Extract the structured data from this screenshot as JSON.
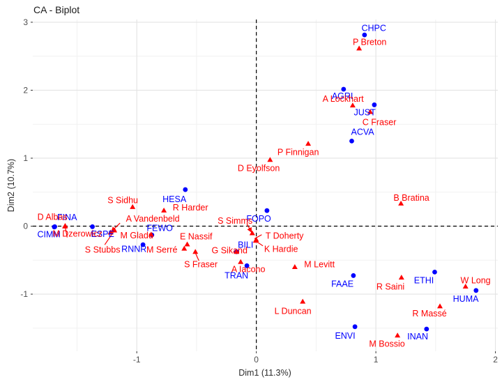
{
  "title": "CA - Biplot",
  "chart_data": {
    "type": "scatter",
    "title": "CA - Biplot",
    "xlabel": "Dim1 (11.3%)",
    "ylabel": "Dim2 (10.7%)",
    "xlim": [
      -1.87,
      2.02
    ],
    "ylim": [
      -1.84,
      3.04
    ],
    "grid": true,
    "legend": "none",
    "reference_lines": {
      "x": 0,
      "y": 0,
      "style": "dashed",
      "color": "#000000"
    },
    "x_ticks": {
      "values": [
        -1,
        0,
        1,
        2
      ],
      "labels": [
        "-1",
        "0",
        "1",
        "2"
      ]
    },
    "y_ticks": {
      "values": [
        -1,
        0,
        1,
        2,
        3
      ],
      "labels": [
        "-1",
        "0",
        "1",
        "2",
        "3"
      ]
    },
    "x_minor": [
      -1.5,
      -0.5,
      0.5,
      1.5
    ],
    "y_minor": [
      -1.5,
      -0.5,
      0.5,
      1.5,
      2.5
    ],
    "colors": {
      "committees": "#0000FF",
      "members": "#FF0000",
      "grid_major": "#E3E3E3",
      "grid_minor": "#F1F1F1"
    },
    "series": [
      {
        "name": "committees",
        "marker": "circle",
        "color": "#0000FF",
        "points": [
          {
            "label": "CHPC",
            "x": 0.905,
            "y": 2.813,
            "lx": 0.983,
            "ly": 2.912
          },
          {
            "label": "AGRI",
            "x": 0.73,
            "y": 2.015,
            "lx": 0.72,
            "ly": 1.912
          },
          {
            "label": "JUST",
            "x": 0.987,
            "y": 1.785,
            "lx": 0.907,
            "ly": 1.672
          },
          {
            "label": "ACVA",
            "x": 0.798,
            "y": 1.252,
            "lx": 0.889,
            "ly": 1.387
          },
          {
            "label": "HESA",
            "x": -0.594,
            "y": 0.538,
            "lx": -0.685,
            "ly": 0.397
          },
          {
            "label": "FOPO",
            "x": 0.089,
            "y": 0.229,
            "lx": 0.02,
            "ly": 0.108
          },
          {
            "label": "FINA",
            "x": -1.686,
            "y": -0.008,
            "lx": -1.583,
            "ly": 0.129
          },
          {
            "label": "CIMM",
            "x": -1.69,
            "y": -0.012,
            "lx": -1.735,
            "ly": -0.119
          },
          {
            "label": "ESPE",
            "x": -1.371,
            "y": -0.008,
            "lx": -1.286,
            "ly": -0.115
          },
          {
            "label": "FEWO",
            "x": -0.874,
            "y": -0.129,
            "lx": -0.808,
            "ly": -0.029
          },
          {
            "label": "RNNR",
            "x": -0.948,
            "y": -0.273,
            "lx": -1.023,
            "ly": -0.338
          },
          {
            "label": "BILI",
            "x": -0.166,
            "y": -0.376,
            "lx": -0.09,
            "ly": -0.276
          },
          {
            "label": "TRAN",
            "x": -0.079,
            "y": -0.582,
            "lx": -0.166,
            "ly": -0.727
          },
          {
            "label": "FAAE",
            "x": 0.812,
            "y": -0.727,
            "lx": 0.72,
            "ly": -0.851
          },
          {
            "label": "ETHI",
            "x": 1.492,
            "y": -0.675,
            "lx": 1.402,
            "ly": -0.799
          },
          {
            "label": "HUMA",
            "x": 1.838,
            "y": -0.946,
            "lx": 1.752,
            "ly": -1.067
          },
          {
            "label": "ENVI",
            "x": 0.825,
            "y": -1.479,
            "lx": 0.743,
            "ly": -1.613
          },
          {
            "label": "INAN",
            "x": 1.424,
            "y": -1.513,
            "lx": 1.35,
            "ly": -1.624
          }
        ]
      },
      {
        "name": "members",
        "marker": "triangle",
        "color": "#FF0000",
        "points": [
          {
            "label": "P Breton",
            "x": 0.86,
            "y": 2.613,
            "lx": 0.948,
            "ly": 2.709
          },
          {
            "label": "A Lockhart",
            "x": 0.806,
            "y": 1.775,
            "lx": 0.726,
            "ly": 1.871
          },
          {
            "label": "C Fraser",
            "x": 0.953,
            "y": 1.678,
            "lx": 1.029,
            "ly": 1.531
          },
          {
            "label": "P Finnigan",
            "x": 0.434,
            "y": 1.211,
            "lx": 0.35,
            "ly": 1.088
          },
          {
            "label": "D Eyolfson",
            "x": 0.115,
            "y": 0.974,
            "lx": 0.02,
            "ly": 0.854
          },
          {
            "label": "S Sidhu",
            "x": -1.035,
            "y": 0.28,
            "lx": -1.117,
            "ly": 0.384
          },
          {
            "label": "R Harder",
            "x": -0.773,
            "y": 0.229,
            "lx": -0.551,
            "ly": 0.273
          },
          {
            "label": "B Bratina",
            "x": 1.21,
            "y": 0.332,
            "lx": 1.297,
            "ly": 0.418
          },
          {
            "label": "D Albas",
            "x": -1.599,
            "y": 0.002,
            "lx": -1.706,
            "ly": 0.136
          },
          {
            "label": "M Dzerowicz",
            "x": -1.601,
            "y": -0.006,
            "lx": -1.496,
            "ly": -0.108
          },
          {
            "label": "A Vandenbeld",
            "x": -1.22,
            "y": -0.095,
            "lx": -0.866,
            "ly": 0.108
          },
          {
            "label": "S Stubbs",
            "x": -1.187,
            "y": -0.064,
            "lx": -1.286,
            "ly": -0.348
          },
          {
            "label": "M Gladu",
            "x": -0.88,
            "y": -0.125,
            "lx": -1.0,
            "ly": -0.134
          },
          {
            "label": "M Serré",
            "x": -0.603,
            "y": -0.332,
            "lx": -0.79,
            "ly": -0.348
          },
          {
            "label": "E Nassif",
            "x": -0.578,
            "y": -0.27,
            "lx": -0.504,
            "ly": -0.149
          },
          {
            "label": "S Fraser",
            "x": -0.51,
            "y": -0.379,
            "lx": -0.464,
            "ly": -0.562
          },
          {
            "label": "S Simms",
            "x": -0.034,
            "y": -0.105,
            "lx": -0.178,
            "ly": 0.08
          },
          {
            "label": "T Doherty",
            "x": -0.001,
            "y": -0.201,
            "lx": 0.236,
            "ly": -0.139
          },
          {
            "label": "K Hardie",
            "x": -0.005,
            "y": -0.216,
            "lx": 0.207,
            "ly": -0.338
          },
          {
            "label": "G Sikand",
            "x": -0.166,
            "y": -0.38,
            "lx": -0.224,
            "ly": -0.356
          },
          {
            "label": "A Iacono",
            "x": -0.131,
            "y": -0.528,
            "lx": -0.067,
            "ly": -0.634
          },
          {
            "label": "M Levitt",
            "x": 0.322,
            "y": -0.603,
            "lx": 0.528,
            "ly": -0.562
          },
          {
            "label": "L Duncan",
            "x": 0.388,
            "y": -1.111,
            "lx": 0.306,
            "ly": -1.249
          },
          {
            "label": "R Saini",
            "x": 1.214,
            "y": -0.758,
            "lx": 1.122,
            "ly": -0.892
          },
          {
            "label": "W Long",
            "x": 1.75,
            "y": -0.889,
            "lx": 1.834,
            "ly": -0.799
          },
          {
            "label": "R Massé",
            "x": 1.536,
            "y": -1.18,
            "lx": 1.449,
            "ly": -1.284
          },
          {
            "label": "M Bossio",
            "x": 1.181,
            "y": -1.61,
            "lx": 1.093,
            "ly": -1.73
          }
        ]
      }
    ],
    "leader_lines": [
      {
        "name": "A Vandenbeld",
        "from": [
          -1.14,
          0.046
        ],
        "to": [
          -1.213,
          -0.08
        ],
        "arrow": true
      },
      {
        "name": "S Stubbs",
        "from": [
          -1.268,
          -0.273
        ],
        "to": [
          -1.195,
          -0.085
        ],
        "arrow": false
      },
      {
        "name": "S Simms",
        "from": [
          -0.079,
          0.036
        ],
        "to": [
          -0.04,
          -0.09
        ],
        "arrow": true
      },
      {
        "name": "T Doherty",
        "from": [
          0.045,
          -0.125
        ],
        "to": [
          -0.015,
          -0.185
        ],
        "arrow": false
      },
      {
        "name": "K Hardie",
        "from": [
          0.055,
          -0.29
        ],
        "to": [
          -0.002,
          -0.222
        ],
        "arrow": false
      },
      {
        "name": "S Fraser",
        "from": [
          -0.48,
          -0.51
        ],
        "to": [
          -0.508,
          -0.4
        ],
        "arrow": false
      },
      {
        "name": "M Dzerowicz",
        "from": [
          -1.582,
          -0.165
        ],
        "to": [
          -1.597,
          -0.03
        ],
        "arrow": false
      }
    ]
  }
}
